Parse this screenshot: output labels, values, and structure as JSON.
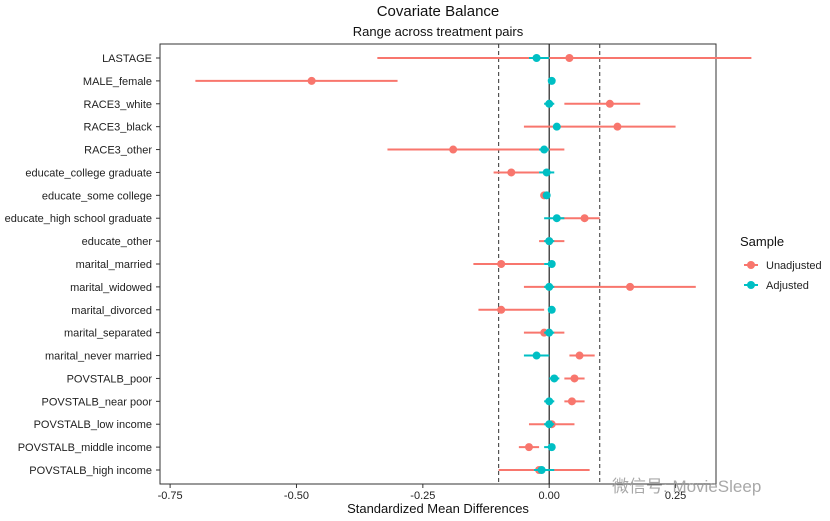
{
  "chart_data": {
    "type": "scatter",
    "title": "Covariate Balance",
    "subtitle": "Range across treatment pairs",
    "xlabel": "Standardized Mean Differences",
    "ylabel": "",
    "xlim": [
      -0.77,
      0.33
    ],
    "x_ticks": [
      -0.75,
      -0.5,
      -0.25,
      0.0,
      0.25
    ],
    "x_tick_labels": [
      "-0.75",
      "-0.50",
      "-0.25",
      "0.00",
      "0.25"
    ],
    "threshold_lines": [
      -0.1,
      0.1
    ],
    "zero_line": 0.0,
    "categories": [
      "LASTAGE",
      "MALE_female",
      "RACE3_white",
      "RACE3_black",
      "RACE3_other",
      "educate_college graduate",
      "educate_some college",
      "educate_high school graduate",
      "educate_other",
      "marital_married",
      "marital_widowed",
      "marital_divorced",
      "marital_separated",
      "marital_never married",
      "POVSTALB_poor",
      "POVSTALB_near poor",
      "POVSTALB_low income",
      "POVSTALB_middle income",
      "POVSTALB_high income"
    ],
    "legend": {
      "title": "Sample",
      "position": "right"
    },
    "series": [
      {
        "name": "Unadjusted",
        "color": "#F8766D",
        "values": [
          0.04,
          -0.47,
          0.12,
          0.135,
          -0.19,
          -0.075,
          -0.01,
          0.07,
          0.0,
          -0.095,
          0.16,
          -0.095,
          -0.01,
          0.06,
          0.05,
          0.045,
          0.005,
          -0.04,
          -0.02
        ],
        "low": [
          -0.34,
          -0.7,
          0.03,
          -0.05,
          -0.32,
          -0.11,
          -0.01,
          0.02,
          -0.02,
          -0.15,
          -0.05,
          -0.14,
          -0.05,
          0.04,
          0.03,
          0.03,
          -0.04,
          -0.06,
          -0.1
        ],
        "high": [
          0.4,
          -0.3,
          0.18,
          0.25,
          0.03,
          -0.02,
          -0.01,
          0.1,
          0.03,
          -0.01,
          0.29,
          -0.01,
          0.03,
          0.09,
          0.07,
          0.07,
          0.05,
          -0.02,
          0.08
        ]
      },
      {
        "name": "Adjusted",
        "color": "#00BFC4",
        "values": [
          -0.025,
          0.005,
          0.0,
          0.015,
          -0.01,
          -0.005,
          -0.005,
          0.015,
          0.0,
          0.005,
          0.0,
          0.005,
          0.0,
          -0.025,
          0.01,
          0.0,
          0.0,
          0.005,
          -0.015
        ],
        "low": [
          -0.04,
          0.0,
          -0.01,
          0.01,
          -0.02,
          -0.02,
          -0.01,
          -0.01,
          -0.01,
          -0.01,
          -0.01,
          0.0,
          -0.01,
          -0.05,
          0.0,
          -0.01,
          -0.01,
          -0.01,
          -0.03
        ],
        "high": [
          0.0,
          0.01,
          0.01,
          0.02,
          0.0,
          0.01,
          0.0,
          0.03,
          0.01,
          0.01,
          0.01,
          0.01,
          0.01,
          0.0,
          0.02,
          0.01,
          0.01,
          0.01,
          0.01
        ]
      }
    ]
  },
  "watermark": {
    "text": "微信号: MovieSleep"
  }
}
